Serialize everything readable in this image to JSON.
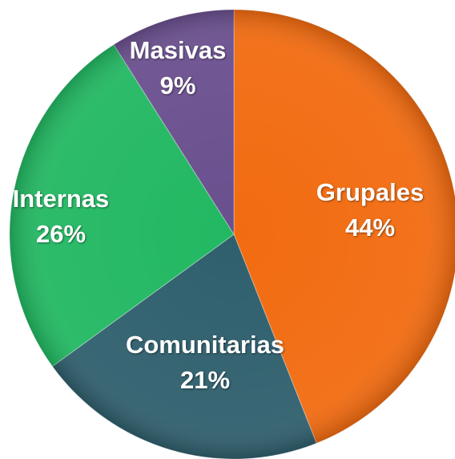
{
  "chart_data": {
    "type": "pie",
    "categories": [
      "Grupales",
      "Comunitarias",
      "Internas",
      "Masivas"
    ],
    "values": [
      44,
      21,
      26,
      9
    ],
    "value_labels": [
      "44%",
      "21%",
      "26%",
      "9%"
    ],
    "colors": [
      "#f26b10",
      "#2f5f6d",
      "#22b862",
      "#6a4f8e"
    ]
  }
}
